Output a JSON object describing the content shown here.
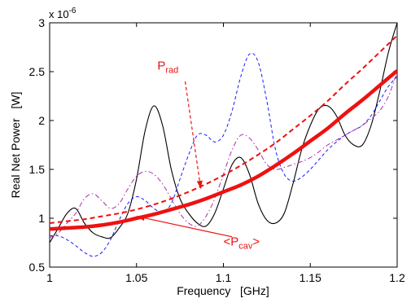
{
  "chart_data": {
    "type": "line",
    "xlabel": "Frequency   [GHz]",
    "ylabel": "Real Net Power   [W]",
    "xlim": [
      1,
      1.2
    ],
    "ylim": [
      5e-07,
      3e-06
    ],
    "x_ticks": [
      1,
      1.05,
      1.1,
      1.15,
      1.2
    ],
    "x_tick_labels": [
      "1",
      "1.05",
      "1.1",
      "1.15",
      "1.2"
    ],
    "y_ticks": [
      5e-07,
      1e-06,
      1.5e-06,
      2e-06,
      2.5e-06,
      3e-06
    ],
    "y_tick_labels": [
      "0.5",
      "1",
      "1.5",
      "2",
      "2.5",
      "3"
    ],
    "y_multiplier": {
      "base": "x 10",
      "exponent": "-6"
    },
    "grid": false,
    "legend": "none",
    "series": [
      {
        "style": "solid-black",
        "color": "#000000",
        "x": [
          1.0,
          1.005,
          1.01,
          1.015,
          1.02,
          1.025,
          1.03,
          1.035,
          1.04,
          1.045,
          1.05,
          1.055,
          1.06,
          1.065,
          1.07,
          1.075,
          1.08,
          1.085,
          1.09,
          1.095,
          1.1,
          1.105,
          1.11,
          1.115,
          1.12,
          1.125,
          1.13,
          1.135,
          1.14,
          1.145,
          1.15,
          1.155,
          1.16,
          1.165,
          1.17,
          1.175,
          1.18,
          1.185,
          1.19,
          1.195,
          1.2
        ],
        "y": [
          7.5e-07,
          9e-07,
          1.05e-06,
          1.1e-06,
          9.5e-07,
          8.5e-07,
          8.1e-07,
          8e-07,
          9e-07,
          1.05e-06,
          1.4e-06,
          1.9e-06,
          2.15e-06,
          1.95e-06,
          1.5e-06,
          1.2e-06,
          1.05e-06,
          9.5e-07,
          9.2e-07,
          1.05e-06,
          1.3e-06,
          1.55e-06,
          1.62e-06,
          1.45e-06,
          1.15e-06,
          9.8e-07,
          9.5e-07,
          1.05e-06,
          1.35e-06,
          1.7e-06,
          1.95e-06,
          2.12e-06,
          2.15e-06,
          2.05e-06,
          1.85e-06,
          1.75e-06,
          1.75e-06,
          1.95e-06,
          2.3e-06,
          2.7e-06,
          3e-06
        ]
      },
      {
        "style": "dashed-blue",
        "color": "#1a1aff",
        "x": [
          1.0,
          1.005,
          1.01,
          1.015,
          1.02,
          1.025,
          1.03,
          1.035,
          1.04,
          1.045,
          1.05,
          1.055,
          1.06,
          1.065,
          1.07,
          1.075,
          1.08,
          1.085,
          1.09,
          1.095,
          1.1,
          1.105,
          1.11,
          1.115,
          1.12,
          1.125,
          1.13,
          1.135,
          1.14,
          1.145,
          1.15,
          1.155,
          1.16,
          1.165,
          1.17,
          1.175,
          1.18,
          1.185,
          1.19,
          1.195,
          1.2
        ],
        "y": [
          8.2e-07,
          8.2e-07,
          7.8e-07,
          7.2e-07,
          6.5e-07,
          6.1e-07,
          6.5e-07,
          7.8e-07,
          9.8e-07,
          1.15e-06,
          1.22e-06,
          1.18e-06,
          1.1e-06,
          1.06e-06,
          1.15e-06,
          1.4e-06,
          1.65e-06,
          1.85e-06,
          1.85e-06,
          1.78e-06,
          1.85e-06,
          2.1e-06,
          2.45e-06,
          2.68e-06,
          2.6e-06,
          2.2e-06,
          1.7e-06,
          1.45e-06,
          1.38e-06,
          1.42e-06,
          1.5e-06,
          1.6e-06,
          1.7e-06,
          1.78e-06,
          1.85e-06,
          1.9e-06,
          1.95e-06,
          2.05e-06,
          2.2e-06,
          2.35e-06,
          2.45e-06
        ]
      },
      {
        "style": "dashdot-magenta",
        "color": "#b02cb0",
        "x": [
          1.0,
          1.005,
          1.01,
          1.015,
          1.02,
          1.025,
          1.03,
          1.035,
          1.04,
          1.045,
          1.05,
          1.055,
          1.06,
          1.065,
          1.07,
          1.075,
          1.08,
          1.085,
          1.09,
          1.095,
          1.1,
          1.105,
          1.11,
          1.115,
          1.12,
          1.125,
          1.13,
          1.135,
          1.14,
          1.145,
          1.15,
          1.155,
          1.16,
          1.165,
          1.17,
          1.175,
          1.18,
          1.185,
          1.19,
          1.195,
          1.2
        ],
        "y": [
          8e-07,
          8.5e-07,
          9.5e-07,
          1.05e-06,
          1.2e-06,
          1.25e-06,
          1.18e-06,
          1.1e-06,
          1.15e-06,
          1.3e-06,
          1.43e-06,
          1.48e-06,
          1.45e-06,
          1.35e-06,
          1.2e-06,
          1.05e-06,
          9.5e-07,
          9.2e-07,
          1.02e-06,
          1.2e-06,
          1.45e-06,
          1.7e-06,
          1.85e-06,
          1.82e-06,
          1.7e-06,
          1.55e-06,
          1.5e-06,
          1.52e-06,
          1.55e-06,
          1.58e-06,
          1.62e-06,
          1.68e-06,
          1.75e-06,
          1.8e-06,
          1.85e-06,
          1.9e-06,
          1.95e-06,
          2.02e-06,
          2.1e-06,
          2.25e-06,
          2.5e-06
        ]
      },
      {
        "style": "dashed-red",
        "color": "#ee1111",
        "x": [
          1.0,
          1.01,
          1.02,
          1.03,
          1.04,
          1.05,
          1.06,
          1.07,
          1.08,
          1.09,
          1.1,
          1.11,
          1.12,
          1.13,
          1.14,
          1.15,
          1.16,
          1.17,
          1.18,
          1.19,
          1.2
        ],
        "y": [
          9.5e-07,
          9.7e-07,
          9.9e-07,
          1.02e-06,
          1.05e-06,
          1.09e-06,
          1.14e-06,
          1.2e-06,
          1.27e-06,
          1.35e-06,
          1.44e-06,
          1.54e-06,
          1.65e-06,
          1.77e-06,
          1.91e-06,
          2.05e-06,
          2.2e-06,
          2.37e-06,
          2.53e-06,
          2.7e-06,
          2.87e-06
        ]
      },
      {
        "style": "thick-red",
        "color": "#ee1111",
        "x": [
          1.0,
          1.01,
          1.02,
          1.03,
          1.04,
          1.05,
          1.06,
          1.07,
          1.08,
          1.09,
          1.1,
          1.11,
          1.12,
          1.13,
          1.14,
          1.15,
          1.16,
          1.17,
          1.18,
          1.19,
          1.2
        ],
        "y": [
          8.9e-07,
          9e-07,
          9.1e-07,
          9.3e-07,
          9.6e-07,
          1e-06,
          1.04e-06,
          1.09e-06,
          1.14e-06,
          1.2e-06,
          1.27e-06,
          1.34e-06,
          1.43e-06,
          1.54e-06,
          1.66e-06,
          1.79e-06,
          1.92e-06,
          2.07e-06,
          2.21e-06,
          2.36e-06,
          2.51e-06
        ]
      }
    ],
    "annotations": [
      {
        "label": "P",
        "sub": "rad",
        "color": "#ee1111",
        "text_x": 1.062,
        "text_y": 2.52e-06,
        "arrow_from": [
          1.078,
          2.4e-06
        ],
        "arrow_to": [
          1.087,
          1.3e-06
        ]
      },
      {
        "label": "<P",
        "sub": "cav",
        "suffix": ">",
        "color": "#ee1111",
        "text_x": 1.1,
        "text_y": 7.2e-07,
        "arrow_from": [
          1.105,
          8.1e-07
        ],
        "arrow_to": [
          1.05,
          1.02e-06
        ]
      }
    ]
  }
}
